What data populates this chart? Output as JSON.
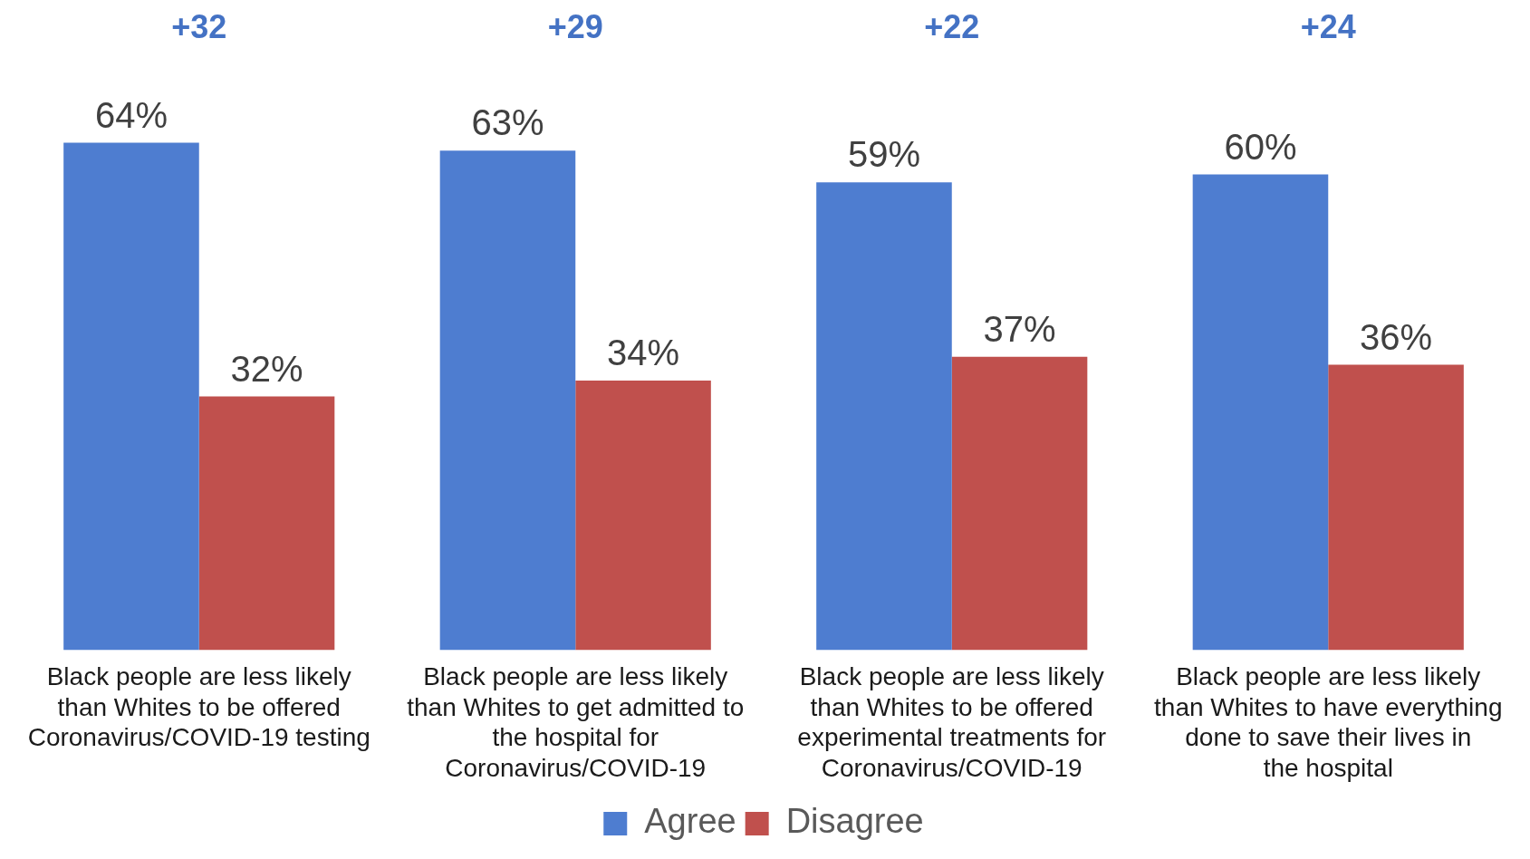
{
  "chart_data": {
    "type": "bar",
    "categories": [
      "Black people are less likely than Whites to be offered Coronavirus/COVID-19 testing",
      "Black people are less likely than Whites to get admitted to the hospital for Coronavirus/COVID-19",
      "Black people are less likely than Whites to be offered experimental treatments for Coronavirus/COVID-19",
      "Black people are less likely than Whites to have everything done to save their lives in the hospital"
    ],
    "series": [
      {
        "name": "Agree",
        "color": "#4e7dd0",
        "values": [
          64,
          63,
          59,
          60
        ],
        "value_labels": [
          "64%",
          "63%",
          "59%",
          "60%"
        ]
      },
      {
        "name": "Disagree",
        "color": "#c0504d",
        "values": [
          32,
          34,
          37,
          36
        ],
        "value_labels": [
          "32%",
          "34%",
          "37%",
          "36%"
        ]
      }
    ],
    "annotations": [
      "+32",
      "+29",
      "+22",
      "+24"
    ],
    "grid": false,
    "legend": "bottom"
  }
}
